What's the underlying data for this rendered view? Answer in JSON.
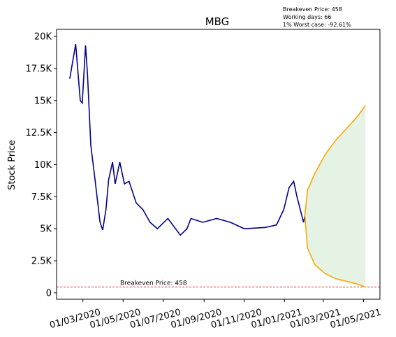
{
  "chart_data": {
    "type": "line",
    "title": "MBG",
    "ylabel": "Stock Price",
    "annotations": [
      "Breakeven Price: 458",
      "Working days: 66",
      "1% Worst case: -92.61%"
    ],
    "breakeven": {
      "value": 458,
      "label": "Breakeven Price: 458",
      "color": "#ff0000"
    },
    "band_color": "#2ca02c",
    "xlim": [
      "2020-01-21",
      "2021-05-26"
    ],
    "xticks": [
      {
        "value": "2020-03-01",
        "label": "01/03/2020"
      },
      {
        "value": "2020-05-01",
        "label": "01/05/2020"
      },
      {
        "value": "2020-07-01",
        "label": "01/07/2020"
      },
      {
        "value": "2020-09-01",
        "label": "01/09/2020"
      },
      {
        "value": "2020-11-01",
        "label": "01/11/2020"
      },
      {
        "value": "2021-01-01",
        "label": "01/01/2021"
      },
      {
        "value": "2021-03-01",
        "label": "01/03/2021"
      },
      {
        "value": "2021-05-01",
        "label": "01/05/2021"
      }
    ],
    "ylim": [
      -500,
      20550
    ],
    "yticks": [
      0,
      {
        "value": 2500,
        "label": "2.5K"
      },
      {
        "value": 5000,
        "label": "5K"
      },
      {
        "value": 7500,
        "label": "7.5K"
      },
      {
        "value": 10000,
        "label": "10K"
      },
      {
        "value": 12500,
        "label": "12.5K"
      },
      {
        "value": 15000,
        "label": "15K"
      },
      {
        "value": 17500,
        "label": "17.5K"
      },
      {
        "value": 20000,
        "label": "20K"
      }
    ],
    "series": [
      {
        "color": "#00008b",
        "x": [
          "2020-02-10",
          "2020-02-19",
          "2020-02-26",
          "2020-02-29",
          "2020-03-05",
          "2020-03-08",
          "2020-03-13",
          "2020-03-19",
          "2020-03-27",
          "2020-03-31",
          "2020-04-05",
          "2020-04-09",
          "2020-04-15",
          "2020-04-19",
          "2020-04-26",
          "2020-05-03",
          "2020-05-10",
          "2020-05-21",
          "2020-05-31",
          "2020-06-11",
          "2020-06-22",
          "2020-07-08",
          "2020-07-27",
          "2020-08-06",
          "2020-08-12",
          "2020-08-30",
          "2020-09-20",
          "2020-10-11",
          "2020-11-01",
          "2020-12-03",
          "2020-12-20",
          "2020-12-31",
          "2021-01-08",
          "2021-01-15",
          "2021-01-20",
          "2021-01-25",
          "2021-01-30",
          "2021-02-01"
        ],
        "values": [
          16700,
          19400,
          15000,
          14800,
          19300,
          17000,
          11500,
          9000,
          5500,
          4900,
          6500,
          8800,
          10200,
          8500,
          10200,
          8500,
          8700,
          7000,
          6500,
          5500,
          5000,
          5800,
          4500,
          5000,
          5800,
          5500,
          5800,
          5500,
          5000,
          5100,
          5300,
          6500,
          8200,
          8700,
          7500,
          6500,
          5500,
          6000
        ]
      },
      {
        "color": "#ffa500",
        "x": [
          "2021-02-01",
          "2021-02-05",
          "2021-02-16",
          "2021-03-04",
          "2021-03-20",
          "2021-04-05",
          "2021-04-21",
          "2021-05-04"
        ],
        "values": [
          6000,
          8000,
          9300,
          10800,
          11900,
          12800,
          13700,
          14600
        ]
      },
      {
        "color": "#ffa500",
        "x": [
          "2021-02-01",
          "2021-02-05",
          "2021-02-16",
          "2021-03-04",
          "2021-03-20",
          "2021-04-05",
          "2021-04-21",
          "2021-05-04"
        ],
        "values": [
          6000,
          3500,
          2200,
          1500,
          1100,
          900,
          700,
          450
        ]
      }
    ]
  }
}
